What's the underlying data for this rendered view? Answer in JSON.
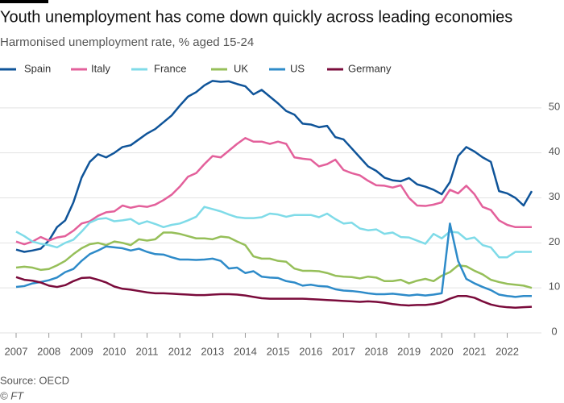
{
  "chart_data": {
    "type": "line",
    "title": "Youth unemployment has come down quickly across leading economies",
    "subtitle": "Harmonised unemployment rate, % aged 15-24",
    "source": "Source: OECD",
    "credit": "© FT",
    "x": [
      2007,
      2007.25,
      2007.5,
      2007.75,
      2008,
      2008.25,
      2008.5,
      2008.75,
      2009,
      2009.25,
      2009.5,
      2009.75,
      2010,
      2010.25,
      2010.5,
      2010.75,
      2011,
      2011.25,
      2011.5,
      2011.75,
      2012,
      2012.25,
      2012.5,
      2012.75,
      2013,
      2013.25,
      2013.5,
      2013.75,
      2014,
      2014.25,
      2014.5,
      2014.75,
      2015,
      2015.25,
      2015.5,
      2015.75,
      2016,
      2016.25,
      2016.5,
      2016.75,
      2017,
      2017.25,
      2017.5,
      2017.75,
      2018,
      2018.25,
      2018.5,
      2018.75,
      2019,
      2019.25,
      2019.5,
      2019.75,
      2020,
      2020.25,
      2020.5,
      2020.75,
      2021,
      2021.25,
      2021.5,
      2021.75,
      2022,
      2022.25,
      2022.5,
      2022.75
    ],
    "xlim": [
      2007,
      2022.75
    ],
    "xticks": [
      2007,
      2008,
      2009,
      2010,
      2011,
      2012,
      2013,
      2014,
      2015,
      2016,
      2017,
      2018,
      2019,
      2020,
      2021,
      2022
    ],
    "ylim": [
      0,
      60
    ],
    "yticks": [
      0,
      10,
      20,
      30,
      40,
      50
    ],
    "grid": true,
    "series": [
      {
        "name": "Spain",
        "color": "#0f5499",
        "values": [
          18.5,
          18,
          18.3,
          18.7,
          20.5,
          23.5,
          25,
          29,
          34.5,
          38,
          39.7,
          39,
          40,
          41.3,
          41.7,
          43,
          44.3,
          45.3,
          46.8,
          48.3,
          50.5,
          52.5,
          53.5,
          55,
          56,
          55.8,
          55.9,
          55.3,
          54.8,
          53,
          54,
          52.5,
          51,
          49.3,
          48.5,
          46.5,
          46.3,
          45.7,
          46,
          43.5,
          43,
          41,
          39,
          37,
          36,
          34.5,
          33.9,
          33.7,
          34.4,
          33,
          32.5,
          31.8,
          30.8,
          33.5,
          39.3,
          41.3,
          40.3,
          39,
          38,
          31.5,
          31,
          30,
          28.3,
          31.5
        ]
      },
      {
        "name": "Italy",
        "color": "#e3609b",
        "values": [
          20.3,
          19.7,
          20.3,
          21.3,
          20.5,
          21.2,
          21.5,
          22.7,
          24.3,
          24.8,
          26,
          26.8,
          27,
          28.3,
          27.8,
          28.2,
          28,
          28.5,
          29.5,
          30.7,
          32.5,
          34.7,
          35.5,
          37.5,
          39.3,
          39,
          40.5,
          42,
          43.3,
          42.5,
          42.5,
          42,
          42.5,
          42,
          39,
          38.7,
          38.5,
          37,
          37.5,
          38.5,
          36.2,
          35.5,
          35,
          33.8,
          32.8,
          32.7,
          32.3,
          32.8,
          30,
          28.3,
          28.2,
          28.5,
          29,
          31.8,
          31,
          32.7,
          30.8,
          28,
          27.3,
          25,
          24,
          23.5,
          23.5,
          23.5
        ]
      },
      {
        "name": "France",
        "color": "#7fdbe8",
        "values": [
          22.5,
          21.5,
          20.3,
          19.8,
          19.5,
          19,
          20,
          20.7,
          22.5,
          24.5,
          25.3,
          25.5,
          24.8,
          25,
          25.3,
          24.2,
          24.8,
          24.2,
          23.5,
          24,
          24.3,
          25,
          25.8,
          28,
          27.5,
          27,
          26.3,
          25.7,
          25.5,
          25.5,
          25.7,
          26.5,
          26.3,
          25.8,
          26.2,
          26.2,
          26.2,
          25.7,
          26.5,
          25.3,
          24.3,
          24.5,
          23.2,
          22.8,
          23,
          22,
          22.3,
          21.3,
          21.2,
          20.5,
          19.8,
          22,
          21,
          22.5,
          22.3,
          20.8,
          21.2,
          19.5,
          19,
          16.8,
          16.8,
          18,
          18,
          18
        ]
      },
      {
        "name": "UK",
        "color": "#96bf59",
        "values": [
          14.5,
          14.7,
          14.5,
          14,
          14.2,
          15,
          16,
          17.5,
          18.8,
          19.7,
          20,
          19.5,
          20.3,
          20,
          19.5,
          20.8,
          20.5,
          20.8,
          22.3,
          22.3,
          22,
          21.5,
          21,
          21,
          20.8,
          21.4,
          21.2,
          20.3,
          19.5,
          17,
          16.5,
          16.5,
          16,
          15.8,
          14.3,
          13.8,
          13.8,
          13.7,
          13.3,
          12.7,
          12.5,
          12.4,
          12.1,
          12.5,
          12.3,
          11.5,
          11.5,
          11.8,
          11,
          11.6,
          12,
          11.5,
          12.7,
          13.5,
          15,
          14.8,
          13.8,
          13,
          11.8,
          11.3,
          10.9,
          10.7,
          10.5,
          10
        ]
      },
      {
        "name": "US",
        "color": "#2e8bc9",
        "values": [
          10.2,
          10.4,
          11,
          11.3,
          11.7,
          12.3,
          13.5,
          14.2,
          16,
          17.5,
          18.3,
          19.2,
          19,
          18.8,
          18.3,
          18.7,
          18,
          17.5,
          17.4,
          16.8,
          16.3,
          16.3,
          16.2,
          16.3,
          16.5,
          16,
          14.3,
          14.5,
          13.3,
          13.7,
          12.5,
          12.3,
          12.2,
          11.5,
          11.2,
          10.5,
          10.7,
          10.4,
          10.3,
          9.7,
          9.4,
          9.3,
          9.1,
          8.8,
          8.6,
          8.6,
          8.7,
          8.5,
          8.3,
          8.5,
          8.3,
          8.5,
          8.8,
          24.3,
          16,
          12,
          11,
          10.2,
          9.5,
          8.5,
          8.2,
          8,
          8.2,
          8.2
        ]
      },
      {
        "name": "Germany",
        "color": "#7a0b3b",
        "values": [
          12.4,
          11.8,
          11.6,
          11.2,
          10.5,
          10.2,
          10.6,
          11.5,
          12.2,
          12.3,
          11.8,
          11.2,
          10.3,
          9.8,
          9.6,
          9.3,
          9,
          8.8,
          8.8,
          8.7,
          8.6,
          8.5,
          8.4,
          8.4,
          8.5,
          8.6,
          8.6,
          8.5,
          8.3,
          8,
          7.7,
          7.6,
          7.6,
          7.6,
          7.6,
          7.6,
          7.5,
          7.4,
          7.3,
          7.2,
          7.1,
          7,
          6.9,
          7,
          6.9,
          6.7,
          6.4,
          6.2,
          6.1,
          6.2,
          6.2,
          6.4,
          6.8,
          7.6,
          8.2,
          8.2,
          7.8,
          7,
          6.3,
          5.9,
          5.7,
          5.6,
          5.7,
          5.8
        ]
      }
    ]
  }
}
